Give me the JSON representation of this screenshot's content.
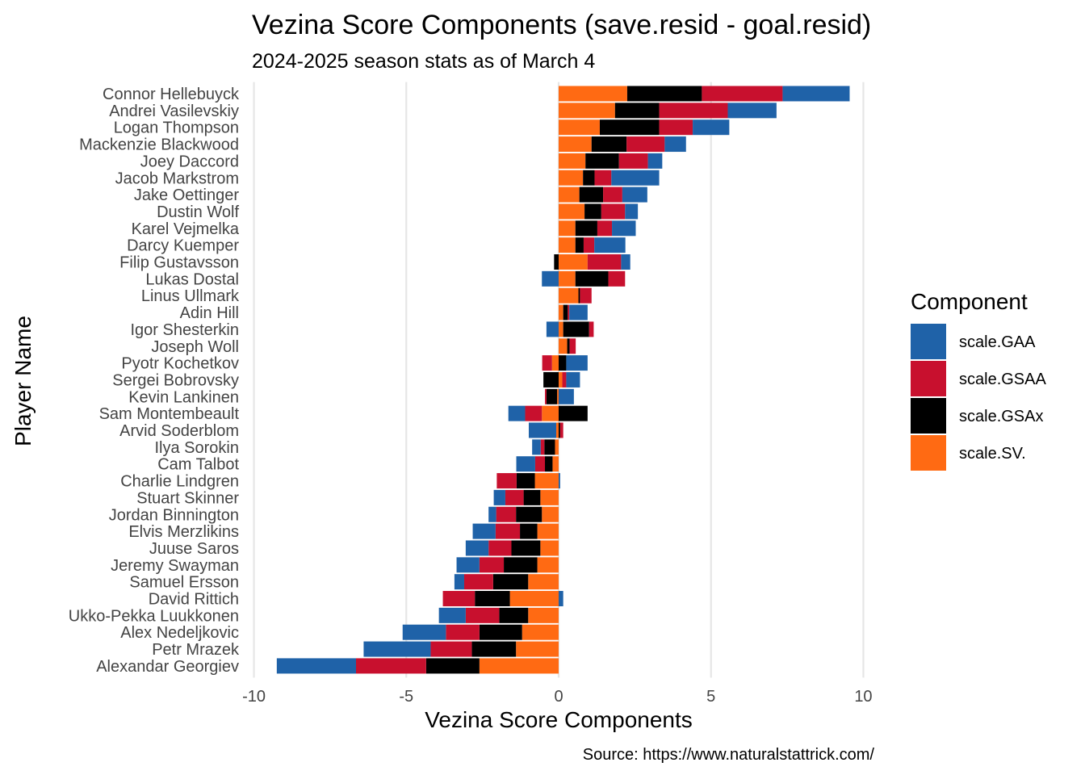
{
  "chart_data": {
    "type": "bar",
    "orientation": "horizontal",
    "stacked": true,
    "title": "Vezina Score Components (save.resid - goal.resid)",
    "subtitle": "2024-2025 season stats as of March 4",
    "xlabel": "Vezina Score Components",
    "ylabel": "Player Name",
    "caption": "Source: https://www.naturalstattrick.com/",
    "xlim": [
      -10.2,
      10.2
    ],
    "xticks": [
      -10,
      -5,
      0,
      5,
      10
    ],
    "xtick_labels": [
      "-10",
      "-5",
      "0",
      "5",
      "10"
    ],
    "grid": true,
    "legend": {
      "title": "Component",
      "position": "right",
      "entries": [
        "scale.GAA",
        "scale.GSAA",
        "scale.GSAx",
        "scale.SV."
      ]
    },
    "stack_order": [
      "scale.SV.",
      "scale.GSAx",
      "scale.GSAA",
      "scale.GAA"
    ],
    "colors": {
      "scale.GAA": "#1f62a8",
      "scale.GSAA": "#c8102e",
      "scale.GSAx": "#000000",
      "scale.SV.": "#ff6a13"
    },
    "categories": [
      "Connor Hellebuyck",
      "Andrei Vasilevskiy",
      "Logan Thompson",
      "Mackenzie Blackwood",
      "Joey Daccord",
      "Jacob Markstrom",
      "Jake Oettinger",
      "Dustin Wolf",
      "Karel Vejmelka",
      "Darcy Kuemper",
      "Filip Gustavsson",
      "Lukas Dostal",
      "Linus Ullmark",
      "Adin Hill",
      "Igor Shesterkin",
      "Joseph Woll",
      "Pyotr Kochetkov",
      "Sergei Bobrovsky",
      "Kevin Lankinen",
      "Sam Montembeault",
      "Arvid Soderblom",
      "Ilya Sorokin",
      "Cam Talbot",
      "Charlie Lindgren",
      "Stuart Skinner",
      "Jordan Binnington",
      "Elvis Merzlikins",
      "Juuse Saros",
      "Jeremy Swayman",
      "Samuel Ersson",
      "David Rittich",
      "Ukko-Pekka Luukkonen",
      "Alex Nedeljkovic",
      "Petr Mrazek",
      "Alexandar Georgiev"
    ],
    "series": [
      {
        "name": "scale.SV.",
        "values": [
          2.25,
          1.85,
          1.35,
          1.08,
          0.88,
          0.8,
          0.68,
          0.85,
          0.55,
          0.55,
          0.95,
          0.55,
          0.65,
          0.15,
          0.15,
          0.28,
          -0.22,
          0.12,
          -0.05,
          -0.55,
          -0.08,
          -0.12,
          -0.2,
          -0.78,
          -0.6,
          -0.55,
          -0.7,
          -0.6,
          -0.7,
          -1.0,
          -1.6,
          -1.0,
          -1.2,
          -1.4,
          -2.6
        ]
      },
      {
        "name": "scale.GSAx",
        "values": [
          2.45,
          1.45,
          1.95,
          1.15,
          1.1,
          0.38,
          0.78,
          0.55,
          0.72,
          0.27,
          -0.15,
          1.08,
          0.05,
          0.15,
          0.85,
          0.08,
          0.25,
          -0.5,
          -0.35,
          0.95,
          0.05,
          -0.35,
          -0.25,
          -0.6,
          -0.55,
          -0.85,
          -0.57,
          -0.95,
          -1.1,
          -1.15,
          -1.15,
          -0.95,
          -1.4,
          -1.45,
          -1.75
        ]
      },
      {
        "name": "scale.GSAA",
        "values": [
          2.65,
          2.25,
          1.1,
          1.25,
          0.95,
          0.55,
          0.63,
          0.78,
          0.48,
          0.35,
          1.1,
          0.55,
          0.38,
          0.05,
          0.15,
          0.2,
          -0.32,
          0.13,
          -0.05,
          -0.55,
          0.1,
          -0.12,
          -0.32,
          -0.65,
          -0.6,
          -0.65,
          -0.8,
          -0.75,
          -0.8,
          -0.95,
          -1.05,
          -1.1,
          -1.1,
          -1.35,
          -2.3
        ]
      },
      {
        "name": "scale.GAA",
        "values": [
          2.2,
          1.6,
          1.2,
          0.7,
          0.47,
          1.57,
          0.82,
          0.42,
          0.78,
          1.02,
          0.3,
          -0.55,
          0.0,
          0.6,
          -0.4,
          0.0,
          0.7,
          0.45,
          0.5,
          -0.55,
          -0.9,
          -0.28,
          -0.62,
          0.05,
          -0.38,
          -0.25,
          -0.75,
          -0.75,
          -0.75,
          -0.32,
          0.15,
          -0.88,
          -1.42,
          -2.2,
          -2.6
        ]
      }
    ]
  }
}
